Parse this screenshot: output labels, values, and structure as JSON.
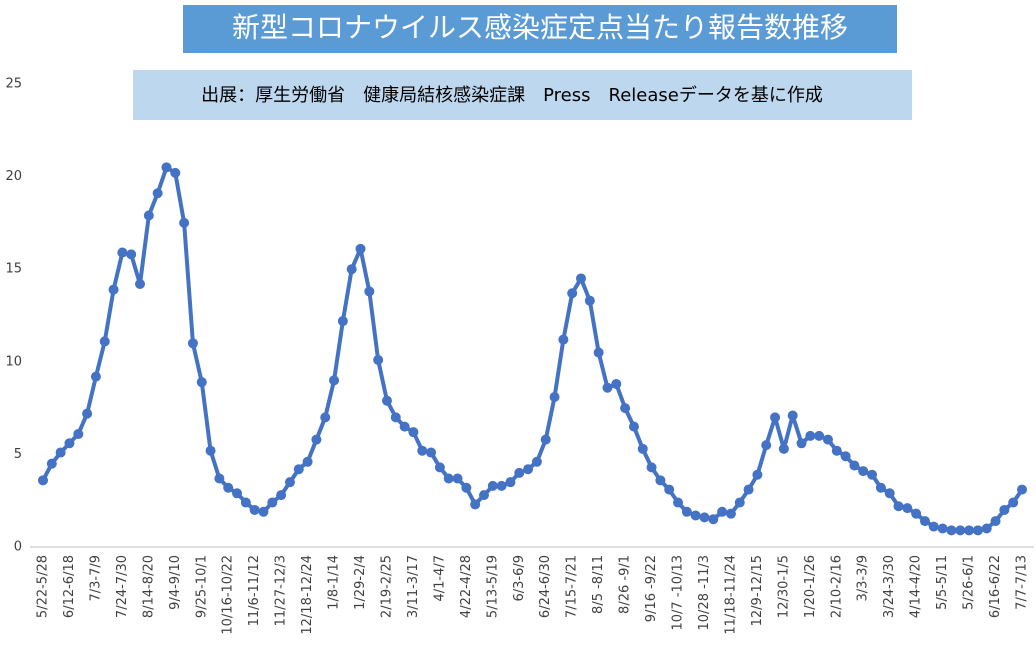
{
  "chart_data": {
    "type": "line",
    "title": "新型コロナウイルス感染症定点当たり報告数推移",
    "subtitle": "出展：厚生労働省　健康局結核感染症課　Press　Releaseデータを基に作成",
    "categories": [
      "5/22-5/28",
      null,
      null,
      "6/12-6/18",
      null,
      null,
      "7/3-7/9",
      null,
      null,
      "7/24-7/30",
      null,
      null,
      "8/14-8/20",
      null,
      null,
      "9/4-9/10",
      null,
      null,
      "9/25-10/1",
      null,
      null,
      "10/16-10/22",
      null,
      null,
      "11/6-11/12",
      null,
      null,
      "11/27-12/3",
      null,
      null,
      "12/18-12/24",
      null,
      null,
      "1/8-1/14",
      null,
      null,
      "1/29-2/4",
      null,
      null,
      "2/19-2/25",
      null,
      null,
      "3/11-3/17",
      null,
      null,
      "4/1-4/7",
      null,
      null,
      "4/22-4/28",
      null,
      null,
      "5/13-5/19",
      null,
      null,
      "6/3-6/9",
      null,
      null,
      "6/24-6/30",
      null,
      null,
      "7/15-7/21",
      null,
      null,
      "8/5 -8/11",
      null,
      null,
      "8/26 -9/1",
      null,
      null,
      "9/16 -9/22",
      null,
      null,
      "10/7 -10/13",
      null,
      null,
      "10/28 -11/3",
      null,
      null,
      "11/18-11/24",
      null,
      null,
      "12/9-12/15",
      null,
      null,
      "12/30-1/5",
      null,
      null,
      "1/20-1/26",
      null,
      null,
      "2/10-2/16",
      null,
      null,
      "3/3-3/9",
      null,
      null,
      "3/24-3/30",
      null,
      null,
      "4/14-4/20",
      null,
      null,
      "5/5-5/11",
      null,
      null,
      "5/26-6/1",
      null,
      null,
      "6/16-6/22",
      null,
      null,
      "7/7-7/13"
    ],
    "series": [
      {
        "name": "定点当たり報告数",
        "color": "#4472c4",
        "values": [
          3.6,
          4.5,
          5.1,
          5.6,
          6.1,
          7.2,
          9.2,
          11.1,
          13.9,
          15.9,
          15.8,
          14.2,
          17.9,
          19.1,
          20.5,
          20.2,
          17.5,
          11.0,
          8.9,
          5.2,
          3.7,
          3.2,
          2.9,
          2.4,
          2.0,
          1.9,
          2.4,
          2.8,
          3.5,
          4.2,
          4.6,
          5.8,
          7.0,
          9.0,
          12.2,
          15.0,
          16.1,
          13.8,
          10.1,
          7.9,
          7.0,
          6.5,
          6.2,
          5.2,
          5.1,
          4.3,
          3.7,
          3.7,
          3.2,
          2.3,
          2.8,
          3.3,
          3.3,
          3.5,
          4.0,
          4.2,
          4.6,
          5.8,
          8.1,
          11.2,
          13.7,
          14.5,
          13.3,
          10.5,
          8.6,
          8.8,
          7.5,
          6.5,
          5.3,
          4.3,
          3.6,
          3.1,
          2.4,
          1.9,
          1.7,
          1.6,
          1.5,
          1.9,
          1.8,
          2.4,
          3.1,
          3.9,
          5.5,
          7.0,
          5.3,
          7.1,
          5.6,
          6.0,
          6.0,
          5.8,
          5.2,
          4.9,
          4.4,
          4.1,
          3.9,
          3.2,
          2.9,
          2.2,
          2.1,
          1.8,
          1.4,
          1.1,
          1.0,
          0.9,
          0.9,
          0.9,
          0.9,
          1.0,
          1.4,
          2.0,
          2.4,
          3.1
        ]
      }
    ],
    "ylim": [
      0,
      25
    ],
    "yticks": [
      0,
      5,
      10,
      15,
      20,
      25
    ],
    "grid": false,
    "legend": false
  }
}
